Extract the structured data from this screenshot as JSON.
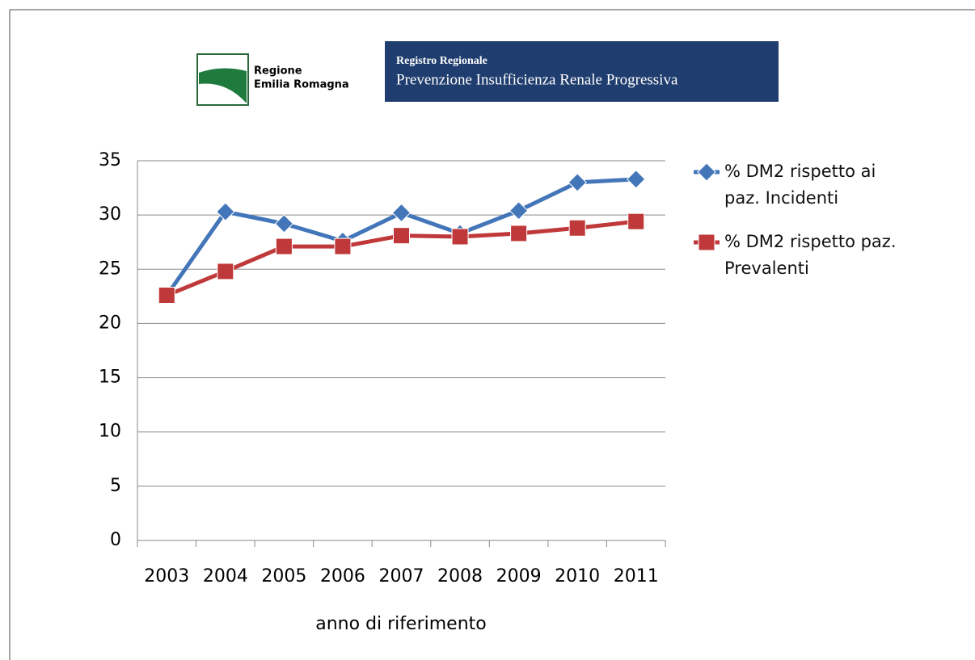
{
  "logos": {
    "region_line1": "Regione",
    "region_line2": "Emilia Romagna",
    "registry_title": "Registro Regionale",
    "registry_subtitle": "Prevenzione Insufficienza Renale Progressiva"
  },
  "chart_data": {
    "type": "line",
    "x_label": "anno di riferimento",
    "categories": [
      "2003",
      "2004",
      "2005",
      "2006",
      "2007",
      "2008",
      "2009",
      "2010",
      "2011"
    ],
    "series": [
      {
        "name": "% DM2 rispetto ai paz. Incidenti",
        "color": "#4376b9",
        "marker": "diamond",
        "values": [
          22.6,
          30.3,
          29.2,
          27.6,
          30.2,
          28.3,
          30.4,
          33.0,
          33.3
        ]
      },
      {
        "name": "% DM2 rispetto paz. Prevalenti",
        "color": "#c0393a",
        "marker": "square",
        "values": [
          22.6,
          24.8,
          27.1,
          27.1,
          28.1,
          28.0,
          28.3,
          28.8,
          29.4
        ]
      }
    ],
    "ylim": [
      0,
      35
    ],
    "yticks": [
      0,
      5,
      10,
      15,
      20,
      25,
      30,
      35
    ],
    "grid": true,
    "legend": "right"
  }
}
